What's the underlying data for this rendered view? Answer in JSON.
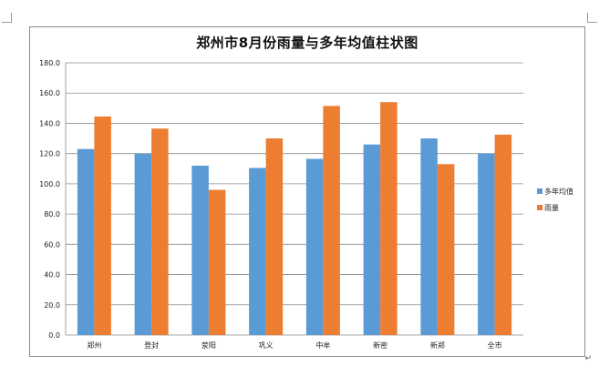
{
  "chart_data": {
    "type": "bar",
    "title": "郑州市8月份雨量与多年均值柱状图",
    "categories": [
      "郑州",
      "登封",
      "荥阳",
      "巩义",
      "中牟",
      "新密",
      "新郑",
      "全市"
    ],
    "series": [
      {
        "name": "多年均值",
        "color": "#5b9bd5",
        "values": [
          123,
          120,
          112,
          110.5,
          116.5,
          126,
          130,
          120
        ]
      },
      {
        "name": "雨量",
        "color": "#ed7d31",
        "values": [
          144.5,
          136.5,
          96,
          130,
          151.5,
          154,
          113,
          132.5
        ]
      }
    ],
    "ylim": [
      0,
      180
    ],
    "yticks": [
      "0.0",
      "20.0",
      "40.0",
      "60.0",
      "80.0",
      "100.0",
      "120.0",
      "140.0",
      "160.0",
      "180.0"
    ],
    "grid": true,
    "legend_position": "right"
  },
  "colors": {
    "gridline": "#8c8c8c",
    "axis": "#8c8c8c"
  },
  "page_marks": {
    "return_symbol": "↵"
  }
}
